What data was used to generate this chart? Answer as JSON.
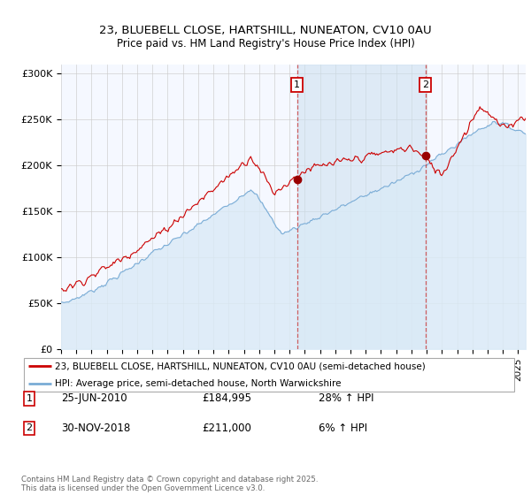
{
  "title1": "23, BLUEBELL CLOSE, HARTSHILL, NUNEATON, CV10 0AU",
  "title2": "Price paid vs. HM Land Registry's House Price Index (HPI)",
  "ylabel_ticks": [
    "£0",
    "£50K",
    "£100K",
    "£150K",
    "£200K",
    "£250K",
    "£300K"
  ],
  "ylim": [
    0,
    310000
  ],
  "xlim_start": 1995.0,
  "xlim_end": 2025.5,
  "sale1_date": 2010.49,
  "sale1_price": 184995,
  "sale2_date": 2018.92,
  "sale2_price": 211000,
  "red_line_color": "#cc0000",
  "blue_line_color": "#7aacd6",
  "blue_fill_color": "#daeaf7",
  "shade_color": "#cce0f0",
  "grid_color": "#cccccc",
  "background_color": "#f5f8ff",
  "legend_label1": "23, BLUEBELL CLOSE, HARTSHILL, NUNEATON, CV10 0AU (semi-detached house)",
  "legend_label2": "HPI: Average price, semi-detached house, North Warwickshire",
  "footer": "Contains HM Land Registry data © Crown copyright and database right 2025.\nThis data is licensed under the Open Government Licence v3.0."
}
